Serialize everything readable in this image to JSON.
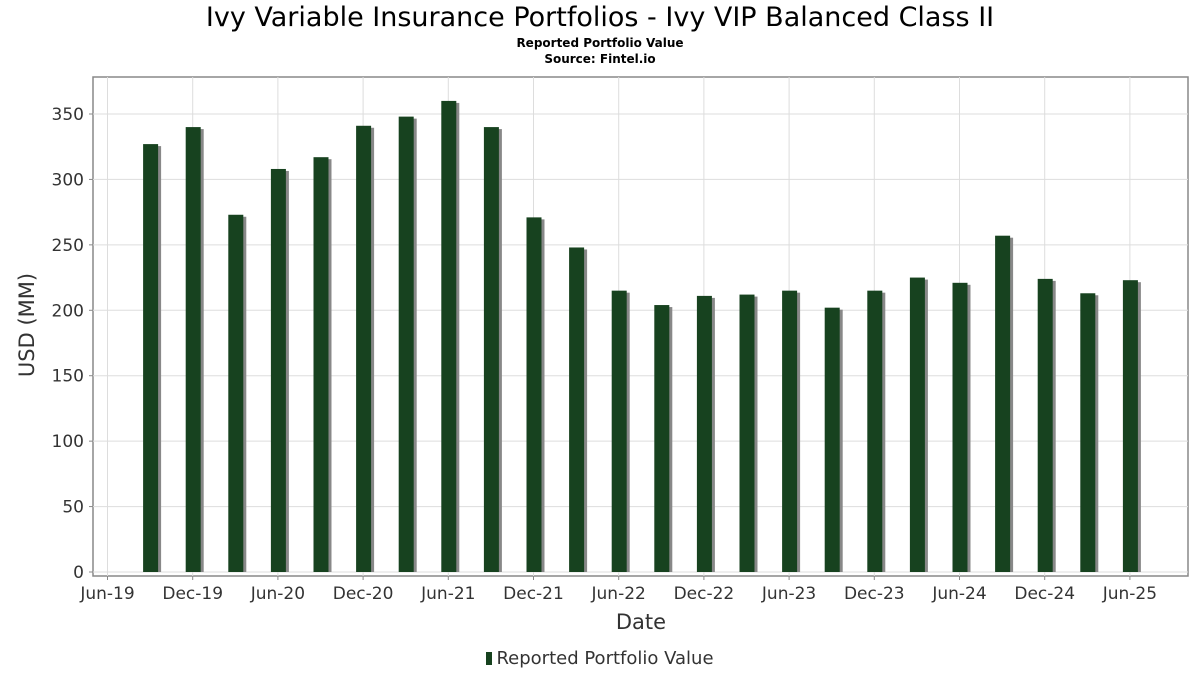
{
  "chart_data": {
    "type": "bar",
    "title": "Ivy Variable Insurance Portfolios - Ivy VIP Balanced Class II",
    "subtitle": "Reported Portfolio Value",
    "source": "Source: Fintel.io",
    "xlabel": "Date",
    "ylabel": "USD (MM)",
    "ylim": [
      0,
      375
    ],
    "yticks": [
      0,
      50,
      100,
      150,
      200,
      250,
      300,
      350
    ],
    "xticks": [
      "Jun-19",
      "Dec-19",
      "Jun-20",
      "Dec-20",
      "Jun-21",
      "Dec-21",
      "Jun-22",
      "Dec-22",
      "Jun-23",
      "Dec-23",
      "Jun-24",
      "Dec-24",
      "Jun-25"
    ],
    "grid": true,
    "legend_position": "bottom",
    "bar_color": "#17421f",
    "series": [
      {
        "name": "Reported Portfolio Value",
        "categories": [
          "Sep-19",
          "Dec-19",
          "Mar-20",
          "Jun-20",
          "Sep-20",
          "Dec-20",
          "Mar-21",
          "Jun-21",
          "Sep-21",
          "Dec-21",
          "Mar-22",
          "Jun-22",
          "Sep-22",
          "Dec-22",
          "Mar-23",
          "Jun-23",
          "Sep-23",
          "Dec-23",
          "Mar-24",
          "Jun-24",
          "Sep-24",
          "Dec-24",
          "Mar-25",
          "Jun-25"
        ],
        "values": [
          327,
          340,
          273,
          308,
          317,
          341,
          348,
          360,
          340,
          271,
          248,
          215,
          204,
          211,
          212,
          215,
          202,
          215,
          225,
          221,
          257,
          224,
          213,
          223
        ]
      }
    ]
  }
}
